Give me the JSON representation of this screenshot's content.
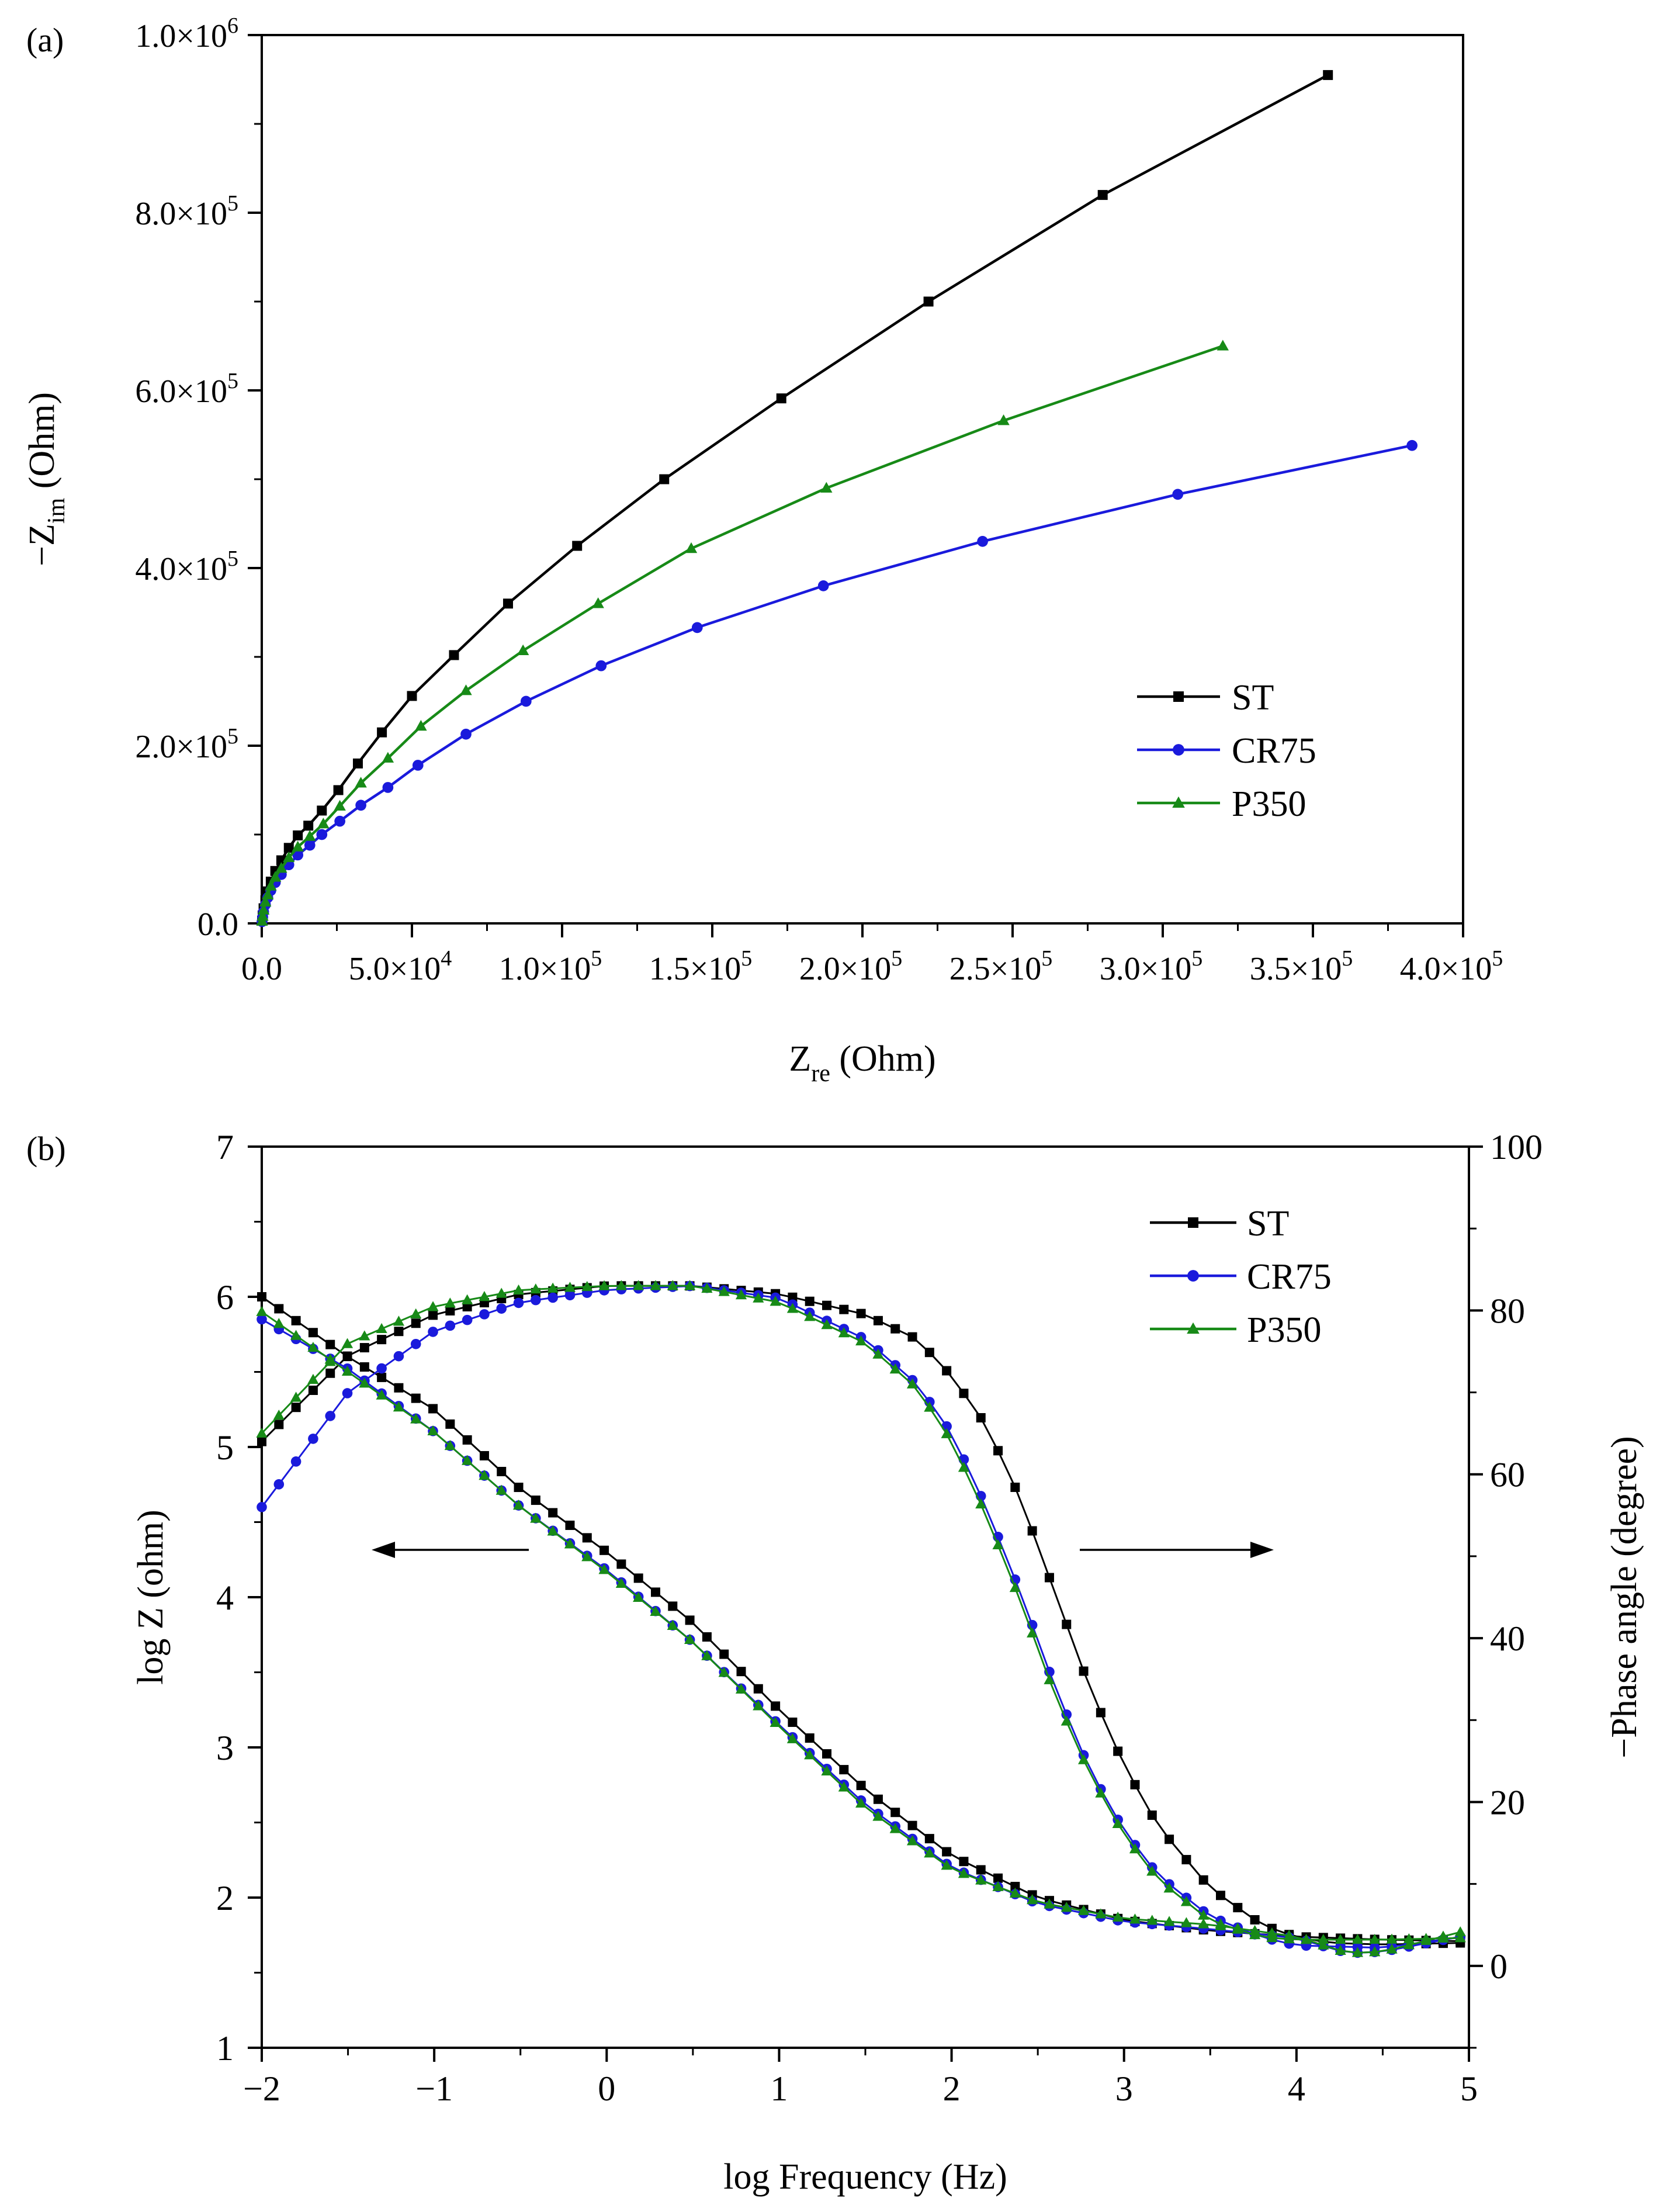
{
  "chart_data": [
    {
      "panel_label": "(a)",
      "type": "line",
      "xlabel": {
        "main": "Z",
        "sub": "re",
        "rest": " (Ohm)"
      },
      "ylabel": {
        "main": "−Z",
        "sub": "im",
        "rest": " (Ohm)"
      },
      "xlim": [
        0,
        400000
      ],
      "ylim": [
        0,
        1000000
      ],
      "xticks": [
        {
          "v": 0,
          "label": "0.0"
        },
        {
          "v": 50000,
          "label": "5.0×10",
          "exp": "4"
        },
        {
          "v": 100000,
          "label": "1.0×10",
          "exp": "5"
        },
        {
          "v": 150000,
          "label": "1.5×10",
          "exp": "5"
        },
        {
          "v": 200000,
          "label": "2.0×10",
          "exp": "5"
        },
        {
          "v": 250000,
          "label": "2.5×10",
          "exp": "5"
        },
        {
          "v": 300000,
          "label": "3.0×10",
          "exp": "5"
        },
        {
          "v": 350000,
          "label": "3.5×10",
          "exp": "5"
        },
        {
          "v": 400000,
          "label": "4.0×10",
          "exp": "5"
        }
      ],
      "yticks": [
        {
          "v": 0,
          "label": "0.0"
        },
        {
          "v": 200000,
          "label": "2.0×10",
          "exp": "5"
        },
        {
          "v": 400000,
          "label": "4.0×10",
          "exp": "5"
        },
        {
          "v": 600000,
          "label": "6.0×10",
          "exp": "5"
        },
        {
          "v": 800000,
          "label": "8.0×10",
          "exp": "5"
        },
        {
          "v": 1000000,
          "label": "1.0×10",
          "exp": "6"
        }
      ],
      "legend_position": "bottom-right",
      "series": [
        {
          "name": "ST",
          "color": "#000000",
          "marker": "square",
          "x": [
            100,
            300,
            600,
            1200,
            2000,
            3000,
            4500,
            6500,
            9000,
            12000,
            15500,
            20000,
            25500,
            32000,
            40000,
            50000,
            64000,
            82000,
            105000,
            134000,
            173000,
            222000,
            280000,
            355000
          ],
          "y": [
            3000,
            9000,
            17000,
            26000,
            36000,
            47000,
            59000,
            71000,
            85000,
            99000,
            110000,
            127000,
            150000,
            180000,
            215000,
            256000,
            302000,
            360000,
            425000,
            500000,
            591000,
            700000,
            820000,
            955000
          ]
        },
        {
          "name": "CR75",
          "color": "#1a1adc",
          "marker": "circle",
          "x": [
            100,
            300,
            600,
            1200,
            2000,
            3000,
            4500,
            6500,
            9000,
            12000,
            16000,
            20000,
            26000,
            33000,
            42000,
            52000,
            68000,
            88000,
            113000,
            145000,
            187000,
            240000,
            305000,
            383000
          ],
          "y": [
            2000,
            7000,
            13000,
            21000,
            29000,
            37000,
            46000,
            55000,
            66000,
            77000,
            88000,
            100000,
            115000,
            133000,
            153000,
            178000,
            213000,
            250000,
            290000,
            333000,
            380000,
            430000,
            483000,
            538000
          ],
          "x_scaled": true
        },
        {
          "name": "P350",
          "color": "#178a17",
          "marker": "triangle",
          "x": [
            100,
            300,
            600,
            1200,
            2000,
            3000,
            4500,
            6500,
            9000,
            12000,
            16000,
            20500,
            26000,
            33000,
            42000,
            53000,
            68000,
            87000,
            112000,
            143000,
            188000,
            247000,
            320000
          ],
          "y": [
            2500,
            8000,
            15000,
            24000,
            32000,
            42000,
            52000,
            62000,
            74000,
            86000,
            98000,
            112000,
            132000,
            158000,
            186000,
            222000,
            262000,
            307000,
            360000,
            422000,
            490000,
            566000,
            650000
          ]
        }
      ]
    },
    {
      "panel_label": "(b)",
      "type": "line",
      "xlabel": "log Frequency (Hz)",
      "ylabel_left": "log Z (ohm)",
      "ylabel_right": "−Phase angle (degree)",
      "xlim": [
        -2,
        5
      ],
      "ylim_left": [
        1,
        7
      ],
      "ylim_right": [
        -10,
        100
      ],
      "xticks": [
        {
          "v": -2,
          "label": "−2"
        },
        {
          "v": -1,
          "label": "−1"
        },
        {
          "v": 0,
          "label": "0"
        },
        {
          "v": 1,
          "label": "1"
        },
        {
          "v": 2,
          "label": "2"
        },
        {
          "v": 3,
          "label": "3"
        },
        {
          "v": 4,
          "label": "4"
        },
        {
          "v": 5,
          "label": "5"
        }
      ],
      "yticks_left": [
        {
          "v": 1,
          "label": "1"
        },
        {
          "v": 2,
          "label": "2"
        },
        {
          "v": 3,
          "label": "3"
        },
        {
          "v": 4,
          "label": "4"
        },
        {
          "v": 5,
          "label": "5"
        },
        {
          "v": 6,
          "label": "6"
        },
        {
          "v": 7,
          "label": "7"
        }
      ],
      "yticks_right": [
        {
          "v": 0,
          "label": "0"
        },
        {
          "v": 20,
          "label": "20"
        },
        {
          "v": 40,
          "label": "40"
        },
        {
          "v": 60,
          "label": "60"
        },
        {
          "v": 80,
          "label": "80"
        },
        {
          "v": 100,
          "label": "100"
        }
      ],
      "legend_position": "top-right",
      "points_per_series": 71,
      "series": [
        {
          "name": "ST",
          "color": "#000000",
          "marker": "square",
          "logZ_anchors": [
            [
              -2,
              6.0
            ],
            [
              -1.5,
              5.6
            ],
            [
              -1,
              5.25
            ],
            [
              -0.5,
              4.72
            ],
            [
              0,
              4.3
            ],
            [
              0.5,
              3.83
            ],
            [
              1,
              3.25
            ],
            [
              1.5,
              2.72
            ],
            [
              2,
              2.28
            ],
            [
              2.5,
              2.0
            ],
            [
              3,
              1.85
            ],
            [
              3.5,
              1.78
            ],
            [
              4,
              1.74
            ],
            [
              4.5,
              1.72
            ],
            [
              4.95,
              1.71
            ]
          ],
          "phase_anchors": [
            [
              -2,
              64
            ],
            [
              -1.5,
              74.5
            ],
            [
              -1,
              79.5
            ],
            [
              -0.5,
              82
            ],
            [
              0,
              83
            ],
            [
              0.5,
              83
            ],
            [
              1,
              82
            ],
            [
              1.5,
              79.5
            ],
            [
              1.8,
              76.5
            ],
            [
              2,
              72
            ],
            [
              2.2,
              66
            ],
            [
              2.4,
              57
            ],
            [
              2.6,
              45.5
            ],
            [
              2.8,
              34
            ],
            [
              3,
              24.5
            ],
            [
              3.2,
              17
            ],
            [
              3.5,
              9.5
            ],
            [
              3.8,
              5
            ],
            [
              4,
              3.5
            ],
            [
              4.2,
              2.8
            ],
            [
              4.5,
              2.6
            ],
            [
              4.95,
              2.8
            ]
          ]
        },
        {
          "name": "CR75",
          "color": "#1a1adc",
          "marker": "circle",
          "logZ_anchors": [
            [
              -2,
              5.85
            ],
            [
              -1.5,
              5.52
            ],
            [
              -1,
              5.1
            ],
            [
              -0.5,
              4.6
            ],
            [
              0,
              4.18
            ],
            [
              0.5,
              3.7
            ],
            [
              1,
              3.15
            ],
            [
              1.5,
              2.62
            ],
            [
              2,
              2.2
            ],
            [
              2.5,
              1.96
            ],
            [
              3,
              1.84
            ],
            [
              3.5,
              1.79
            ],
            [
              4,
              1.73
            ],
            [
              4.3,
              1.63
            ],
            [
              4.5,
              1.64
            ],
            [
              4.95,
              1.74
            ]
          ],
          "phase_anchors": [
            [
              -2,
              56
            ],
            [
              -1.5,
              70
            ],
            [
              -1,
              77.5
            ],
            [
              -0.5,
              81
            ],
            [
              0,
              82.5
            ],
            [
              0.5,
              83
            ],
            [
              1,
              81.5
            ],
            [
              1.5,
              76.5
            ],
            [
              1.8,
              71
            ],
            [
              2,
              65
            ],
            [
              2.2,
              56
            ],
            [
              2.4,
              45.5
            ],
            [
              2.6,
              34
            ],
            [
              2.8,
              24
            ],
            [
              3,
              16.5
            ],
            [
              3.2,
              11
            ],
            [
              3.5,
              6
            ],
            [
              3.8,
              3.5
            ],
            [
              4,
              2.5
            ],
            [
              4.5,
              2.2
            ],
            [
              4.95,
              3.5
            ]
          ]
        },
        {
          "name": "P350",
          "color": "#178a17",
          "marker": "triangle",
          "logZ_anchors": [
            [
              -2,
              5.9
            ],
            [
              -1.5,
              5.5
            ],
            [
              -1,
              5.1
            ],
            [
              -0.5,
              4.6
            ],
            [
              0,
              4.17
            ],
            [
              0.5,
              3.7
            ],
            [
              1,
              3.14
            ],
            [
              1.5,
              2.6
            ],
            [
              2,
              2.19
            ],
            [
              2.5,
              1.97
            ],
            [
              3,
              1.86
            ],
            [
              3.5,
              1.82
            ],
            [
              4,
              1.74
            ],
            [
              4.3,
              1.63
            ],
            [
              4.5,
              1.64
            ],
            [
              4.95,
              1.77
            ]
          ],
          "phase_anchors": [
            [
              -2,
              65
            ],
            [
              -1.5,
              76
            ],
            [
              -1,
              80.5
            ],
            [
              -0.5,
              82.5
            ],
            [
              0,
              83
            ],
            [
              0.5,
              83
            ],
            [
              1,
              81
            ],
            [
              1.5,
              76
            ],
            [
              1.8,
              70.5
            ],
            [
              2,
              64
            ],
            [
              2.2,
              55
            ],
            [
              2.4,
              44.5
            ],
            [
              2.6,
              33
            ],
            [
              2.8,
              23.5
            ],
            [
              3,
              16
            ],
            [
              3.2,
              10.5
            ],
            [
              3.5,
              5.5
            ],
            [
              3.8,
              3.5
            ],
            [
              4,
              3.2
            ],
            [
              4.5,
              3.2
            ],
            [
              4.95,
              3.4
            ]
          ]
        }
      ]
    }
  ]
}
